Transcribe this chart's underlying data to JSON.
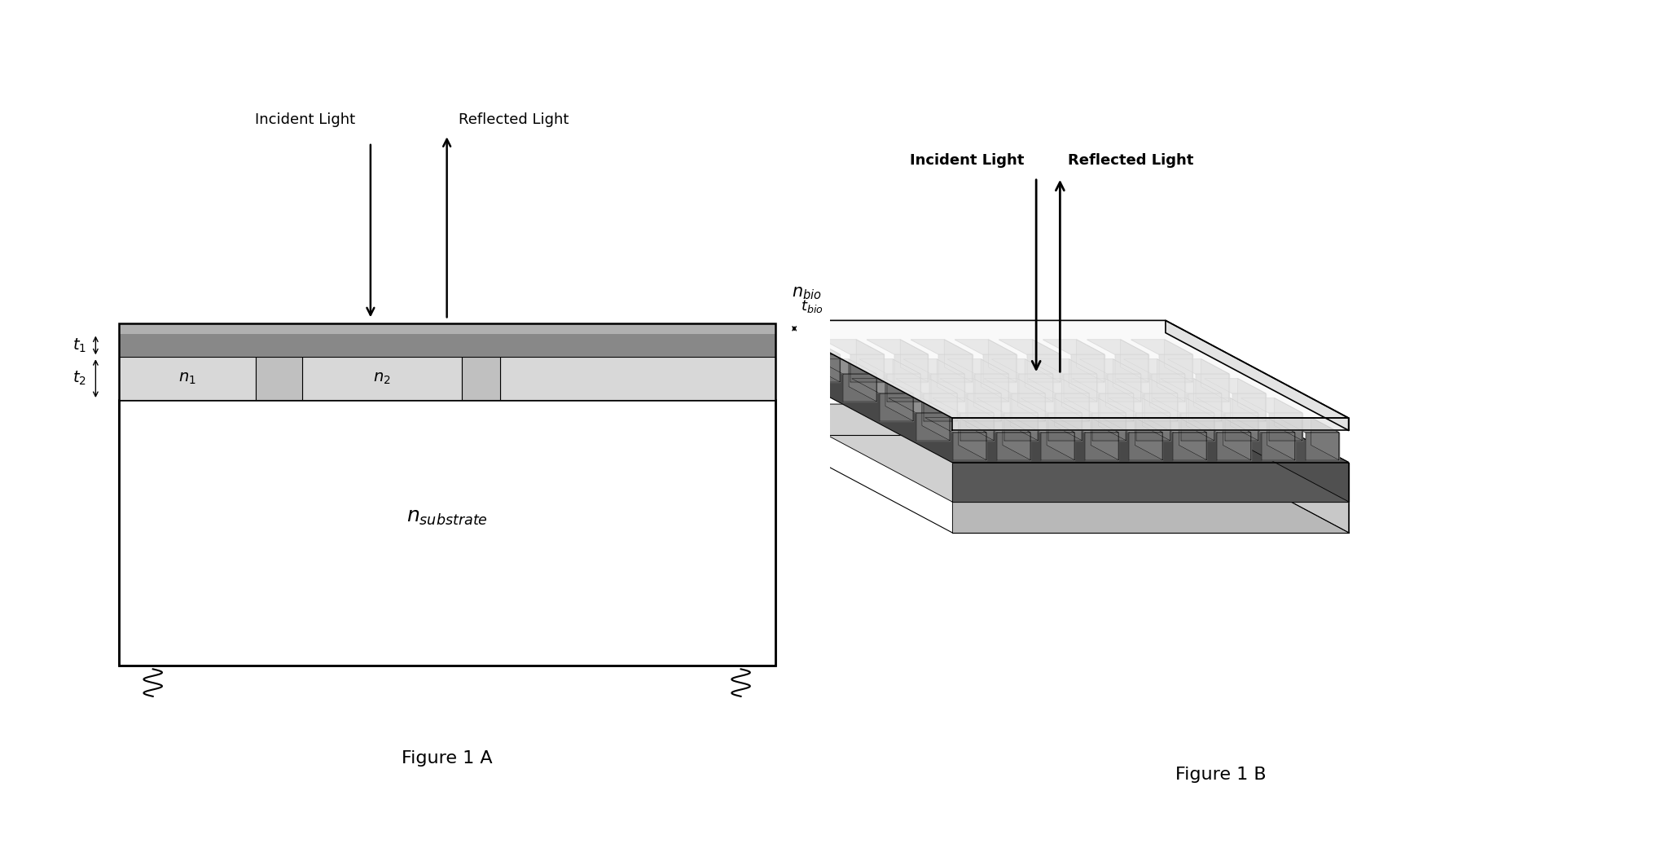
{
  "fig_width": 20.38,
  "fig_height": 10.41,
  "bg_color": "#ffffff",
  "figA": {
    "title": "Figure 1 A",
    "incident_light_label": "Incident Light",
    "reflected_light_label": "Reflected Light",
    "t_bio_label": "$t_{bio}$",
    "n_bio_label": "$n_{bio}$",
    "t1_label": "$t_1$",
    "t2_label": "$t_2$",
    "n1_label": "$n_1$",
    "n2_label": "$n_2$",
    "n_sub_label": "$n_{substrate}$",
    "bio_color": "#b0b0b0",
    "top_bar_color": "#888888",
    "grating_bg_color": "#c0c0c0",
    "grating_pit_color": "#d8d8d8",
    "substrate_color": "#ffffff"
  },
  "figB": {
    "title": "Figure 1 B",
    "incident_light_label": "Incident Light",
    "reflected_light_label": "Reflected Light"
  }
}
